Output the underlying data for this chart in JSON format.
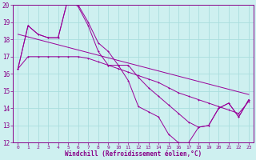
{
  "xlabel": "Windchill (Refroidissement éolien,°C)",
  "background_color": "#cef0f0",
  "grid_color": "#aadddd",
  "line_color": "#990099",
  "xlim": [
    -0.5,
    23.5
  ],
  "ylim": [
    12,
    20
  ],
  "yticks": [
    12,
    13,
    14,
    15,
    16,
    17,
    18,
    19,
    20
  ],
  "xticks": [
    0,
    1,
    2,
    3,
    4,
    5,
    6,
    7,
    8,
    9,
    10,
    11,
    12,
    13,
    14,
    15,
    16,
    17,
    18,
    19,
    20,
    21,
    22,
    23
  ],
  "line1_x": [
    0,
    1,
    2,
    3,
    4,
    5,
    6,
    7,
    8,
    9,
    10,
    11,
    12,
    13,
    14,
    15,
    16,
    17,
    18,
    19,
    20,
    21,
    22,
    23
  ],
  "line1_y": [
    16.3,
    17.0,
    17.0,
    17.0,
    17.0,
    17.0,
    17.0,
    16.9,
    16.7,
    16.5,
    16.3,
    16.1,
    15.9,
    15.7,
    15.5,
    15.2,
    14.9,
    14.7,
    14.5,
    14.3,
    14.1,
    13.9,
    13.7,
    14.4
  ],
  "line2_x": [
    0,
    1,
    2,
    3,
    4,
    5,
    6,
    7,
    8,
    9,
    10,
    11,
    12,
    13,
    14,
    15,
    16,
    17,
    18,
    19,
    20,
    21,
    22,
    23
  ],
  "line2_y": [
    16.3,
    18.8,
    18.3,
    18.1,
    18.1,
    20.4,
    19.9,
    18.8,
    17.3,
    16.5,
    16.5,
    15.6,
    14.1,
    13.8,
    13.5,
    12.5,
    12.0,
    12.0,
    12.9,
    13.0,
    14.0,
    14.3,
    13.5,
    14.5
  ],
  "line3_x": [
    0,
    1,
    2,
    3,
    4,
    5,
    6,
    7,
    8,
    9,
    10,
    11,
    12,
    13,
    14,
    15,
    16,
    17,
    18,
    19,
    20,
    21,
    22,
    23
  ],
  "line3_y": [
    16.3,
    18.8,
    18.3,
    18.1,
    18.1,
    20.4,
    20.0,
    19.0,
    17.8,
    17.3,
    16.5,
    16.5,
    15.8,
    15.2,
    14.7,
    14.2,
    13.7,
    13.2,
    12.9,
    13.0,
    14.0,
    14.3,
    13.5,
    14.5
  ],
  "line4_x": [
    0,
    23
  ],
  "line4_y": [
    18.3,
    14.8
  ]
}
